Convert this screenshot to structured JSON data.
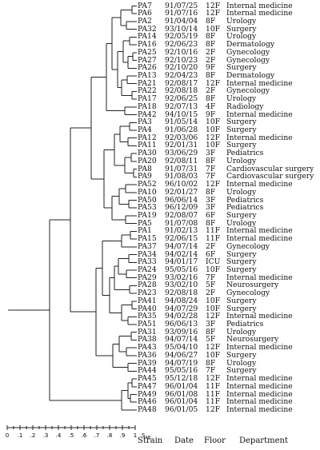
{
  "columns": {
    "strain": "Strain",
    "date": "Date",
    "floor": "Floor",
    "department": "Department"
  },
  "scale": {
    "ticks": [
      "0",
      ".1",
      ".2",
      ".3",
      ".4",
      ".5",
      ".6",
      ".7",
      ".8",
      ".9",
      "1"
    ],
    "label": "S",
    "label_sub": "AB"
  },
  "rows": [
    {
      "strain": "PA7",
      "date": "91/07/25",
      "floor": "12F",
      "dept": "Internal medicine"
    },
    {
      "strain": "PA6",
      "date": "91/07/16",
      "floor": "12F",
      "dept": "Internal medicine"
    },
    {
      "strain": "PA2",
      "date": "91/04/04",
      "floor": "8F",
      "dept": "Urology"
    },
    {
      "strain": "PA32",
      "date": "93/10/14",
      "floor": "10F",
      "dept": "Surgery"
    },
    {
      "strain": "PA14",
      "date": "92/05/19",
      "floor": "8F",
      "dept": "Urology"
    },
    {
      "strain": "PA16",
      "date": "92/06/23",
      "floor": "8F",
      "dept": "Dermatology"
    },
    {
      "strain": "PA25",
      "date": "92/10/16",
      "floor": "2F",
      "dept": "Gynecology"
    },
    {
      "strain": "PA27",
      "date": "92/10/23",
      "floor": "2F",
      "dept": "Gynecology"
    },
    {
      "strain": "PA26",
      "date": "92/10/20",
      "floor": "9F",
      "dept": "Surgery"
    },
    {
      "strain": "PA13",
      "date": "92/04/23",
      "floor": "8F",
      "dept": "Dermatology"
    },
    {
      "strain": "PA21",
      "date": "92/08/17",
      "floor": "12F",
      "dept": "Internal medicine"
    },
    {
      "strain": "PA22",
      "date": "92/08/18",
      "floor": "2F",
      "dept": "Gynecology"
    },
    {
      "strain": "PA17",
      "date": "92/06/25",
      "floor": "8F",
      "dept": "Urology"
    },
    {
      "strain": "PA18",
      "date": "92/07/13",
      "floor": "4F",
      "dept": "Radiology"
    },
    {
      "strain": "PA42",
      "date": "94/10/15",
      "floor": "9F",
      "dept": "Internal medicine"
    },
    {
      "strain": "PA3",
      "date": "91/05/14",
      "floor": "10F",
      "dept": "Surgery"
    },
    {
      "strain": "PA4",
      "date": "91/06/28",
      "floor": "10F",
      "dept": "Surgery"
    },
    {
      "strain": "PA12",
      "date": "92/03/06",
      "floor": "12F",
      "dept": "Internal medicine"
    },
    {
      "strain": "PA11",
      "date": "92/01/31",
      "floor": "10F",
      "dept": "Surgery"
    },
    {
      "strain": "PA30",
      "date": "93/06/29",
      "floor": "3F",
      "dept": "Pediatrics"
    },
    {
      "strain": "PA20",
      "date": "92/08/11",
      "floor": "8F",
      "dept": "Urology"
    },
    {
      "strain": "PA8",
      "date": "91/07/31",
      "floor": "7F",
      "dept": "Cardiovascular surgery"
    },
    {
      "strain": "PA9",
      "date": "91/08/03",
      "floor": "7F",
      "dept": "Cardiovascular surgery"
    },
    {
      "strain": "PA52",
      "date": "96/10/02",
      "floor": "12F",
      "dept": "Internal medicine"
    },
    {
      "strain": "PA10",
      "date": "92/01/27",
      "floor": "8F",
      "dept": "Urology"
    },
    {
      "strain": "PA50",
      "date": "96/06/14",
      "floor": "3F",
      "dept": "Pediatrics"
    },
    {
      "strain": "PA53",
      "date": "96/12/09",
      "floor": "3F",
      "dept": "Pediatrics"
    },
    {
      "strain": "PA19",
      "date": "92/08/07",
      "floor": "6F",
      "dept": "Surgery"
    },
    {
      "strain": "PA5",
      "date": "91/07/08",
      "floor": "8F",
      "dept": "Urology"
    },
    {
      "strain": "PA1",
      "date": "91/02/13",
      "floor": "11F",
      "dept": "Internal medicine"
    },
    {
      "strain": "PA15",
      "date": "92/06/15",
      "floor": "11F",
      "dept": "Internal medicine"
    },
    {
      "strain": "PA37",
      "date": "94/07/14",
      "floor": "2F",
      "dept": "Gynecology"
    },
    {
      "strain": "PA34",
      "date": "94/02/14",
      "floor": "6F",
      "dept": "Surgery"
    },
    {
      "strain": "PA33",
      "date": "94/01/17",
      "floor": "ICU",
      "dept": "Surgery"
    },
    {
      "strain": "PA24",
      "date": "95/05/16",
      "floor": "10F",
      "dept": "Surgery"
    },
    {
      "strain": "PA29",
      "date": "93/02/16",
      "floor": "7F",
      "dept": "Internal medicine"
    },
    {
      "strain": "PA28",
      "date": "93/02/10",
      "floor": "5F",
      "dept": "Neurosurgery"
    },
    {
      "strain": "PA23",
      "date": "92/08/18",
      "floor": "2F",
      "dept": "Gynecology"
    },
    {
      "strain": "PA41",
      "date": "94/08/24",
      "floor": "10F",
      "dept": "Surgery"
    },
    {
      "strain": "PA40",
      "date": "94/07/29",
      "floor": "10F",
      "dept": "Surgery"
    },
    {
      "strain": "PA35",
      "date": "94/02/28",
      "floor": "12F",
      "dept": "Internal medicine"
    },
    {
      "strain": "PA51",
      "date": "96/06/13",
      "floor": "3F",
      "dept": "Pediatrics"
    },
    {
      "strain": "PA31",
      "date": "93/09/16",
      "floor": "8F",
      "dept": "Urology"
    },
    {
      "strain": "PA38",
      "date": "94/07/14",
      "floor": "5F",
      "dept": "Neurosurgery"
    },
    {
      "strain": "PA43",
      "date": "95/04/10",
      "floor": "12F",
      "dept": "Internal medicine"
    },
    {
      "strain": "PA36",
      "date": "94/06/27",
      "floor": "10F",
      "dept": "Surgery"
    },
    {
      "strain": "PA39",
      "date": "94/07/19",
      "floor": "8F",
      "dept": "Urology"
    },
    {
      "strain": "PA44",
      "date": "95/05/16",
      "floor": "7F",
      "dept": "Surgery"
    },
    {
      "strain": "PA45",
      "date": "95/12/18",
      "floor": "12F",
      "dept": "Internal medicine"
    },
    {
      "strain": "PA47",
      "date": "96/01/04",
      "floor": "11F",
      "dept": "Internal medicine"
    },
    {
      "strain": "PA49",
      "date": "96/01/08",
      "floor": "11F",
      "dept": "Internal medicine"
    },
    {
      "strain": "PA46",
      "date": "96/01/04",
      "floor": "11F",
      "dept": "Internal medicine"
    },
    {
      "strain": "PA48",
      "date": "96/01/05",
      "floor": "12F",
      "dept": "Internal medicine"
    }
  ]
}
